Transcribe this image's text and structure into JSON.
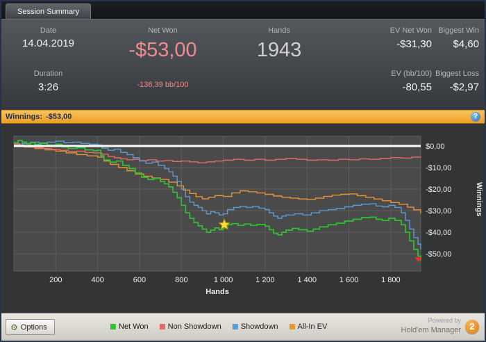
{
  "tab_bar": {
    "tab_label": "Session Summary"
  },
  "stats": {
    "date": {
      "label": "Date",
      "value": "14.04.2019"
    },
    "duration": {
      "label": "Duration",
      "value": "3:26"
    },
    "net_won": {
      "label": "Net Won",
      "value": "-$53,00",
      "subvalue": "-136,39 bb/100"
    },
    "hands": {
      "label": "Hands",
      "value": "1943"
    },
    "ev_net_won": {
      "label": "EV Net Won",
      "value": "-$31,30"
    },
    "biggest_win": {
      "label": "Biggest Win",
      "value": "$4,60"
    },
    "ev_bb100": {
      "label": "EV (bb/100)",
      "value": "-80,55"
    },
    "biggest_loss": {
      "label": "Biggest Loss",
      "value": "-$2,97"
    }
  },
  "winnings_bar": {
    "label": "Winnings:",
    "value": "-$53,00",
    "help": "?"
  },
  "colors": {
    "loss_text": "#ef8c8c",
    "winnings_bar_accent": "#f2a32c",
    "brand_badge": "#e8871a"
  },
  "chart_data": {
    "type": "line",
    "title": "Winnings: -$53,00",
    "xlabel": "Hands",
    "ylabel": "Winnings",
    "xlim": [
      0,
      1943
    ],
    "ylim": [
      -58,
      4.5
    ],
    "grid": true,
    "legend_position": "bottom",
    "plot_bg": "#4a4a4a",
    "grid_color": "#5e5e5e",
    "zero_line_color": "#ffffff",
    "xticks": {
      "values": [
        200,
        400,
        600,
        800,
        1000,
        1200,
        1400,
        1600,
        1800
      ],
      "labels": [
        "200",
        "400",
        "600",
        "800",
        "1 000",
        "1 200",
        "1 400",
        "1 600",
        "1 800"
      ]
    },
    "yticks": {
      "values": [
        0,
        -10,
        -20,
        -30,
        -40,
        -50
      ],
      "labels": [
        "$0,00",
        "-$10,00",
        "-$20,00",
        "-$30,00",
        "-$40,00",
        "-$50,00"
      ]
    },
    "series": [
      {
        "name": "All-In EV",
        "color": "#e79433",
        "width": 1.4,
        "points": [
          [
            0,
            0.5
          ],
          [
            50,
            -0.5
          ],
          [
            100,
            -1.2
          ],
          [
            150,
            -1.8
          ],
          [
            200,
            -2.4
          ],
          [
            250,
            -3.2
          ],
          [
            300,
            -4.0
          ],
          [
            350,
            -4.6
          ],
          [
            400,
            -5.2
          ],
          [
            430,
            -7.0
          ],
          [
            460,
            -8.5
          ],
          [
            500,
            -10.0
          ],
          [
            540,
            -11.5
          ],
          [
            580,
            -13.0
          ],
          [
            620,
            -14.0
          ],
          [
            660,
            -14.8
          ],
          [
            700,
            -15.5
          ],
          [
            740,
            -16.8
          ],
          [
            780,
            -18.5
          ],
          [
            810,
            -20.5
          ],
          [
            840,
            -22.0
          ],
          [
            870,
            -23.5
          ],
          [
            900,
            -24.5
          ],
          [
            930,
            -23.8
          ],
          [
            960,
            -23.0
          ],
          [
            1000,
            -23.4
          ],
          [
            1040,
            -21.8
          ],
          [
            1080,
            -20.8
          ],
          [
            1120,
            -21.2
          ],
          [
            1160,
            -21.8
          ],
          [
            1200,
            -22.4
          ],
          [
            1240,
            -23.2
          ],
          [
            1280,
            -23.8
          ],
          [
            1320,
            -24.2
          ],
          [
            1360,
            -24.6
          ],
          [
            1400,
            -24.8
          ],
          [
            1440,
            -24.2
          ],
          [
            1480,
            -23.4
          ],
          [
            1520,
            -22.8
          ],
          [
            1560,
            -22.4
          ],
          [
            1600,
            -22.2
          ],
          [
            1640,
            -23.0
          ],
          [
            1680,
            -23.8
          ],
          [
            1720,
            -24.6
          ],
          [
            1760,
            -25.4
          ],
          [
            1800,
            -26.2
          ],
          [
            1840,
            -27.0
          ],
          [
            1880,
            -28.4
          ],
          [
            1910,
            -29.6
          ],
          [
            1943,
            -31.3
          ]
        ]
      },
      {
        "name": "Non Showdown",
        "color": "#e46a6a",
        "width": 1.4,
        "points": [
          [
            0,
            1.0
          ],
          [
            30,
            0.2
          ],
          [
            60,
            -0.5
          ],
          [
            100,
            -0.8
          ],
          [
            140,
            -1.2
          ],
          [
            180,
            -1.6
          ],
          [
            220,
            -2.0
          ],
          [
            260,
            -2.6
          ],
          [
            300,
            -2.4
          ],
          [
            340,
            -3.0
          ],
          [
            380,
            -3.2
          ],
          [
            420,
            -3.8
          ],
          [
            450,
            -4.8
          ],
          [
            480,
            -5.5
          ],
          [
            510,
            -6.0
          ],
          [
            540,
            -6.4
          ],
          [
            570,
            -6.2
          ],
          [
            600,
            -6.8
          ],
          [
            640,
            -6.4
          ],
          [
            680,
            -7.0
          ],
          [
            720,
            -6.8
          ],
          [
            760,
            -7.2
          ],
          [
            800,
            -7.0
          ],
          [
            840,
            -7.4
          ],
          [
            880,
            -7.8
          ],
          [
            920,
            -7.4
          ],
          [
            960,
            -7.0
          ],
          [
            1000,
            -6.6
          ],
          [
            1050,
            -6.2
          ],
          [
            1100,
            -6.6
          ],
          [
            1150,
            -6.2
          ],
          [
            1200,
            -6.6
          ],
          [
            1250,
            -6.2
          ],
          [
            1300,
            -5.8
          ],
          [
            1350,
            -6.2
          ],
          [
            1400,
            -6.6
          ],
          [
            1450,
            -6.4
          ],
          [
            1500,
            -6.6
          ],
          [
            1550,
            -6.2
          ],
          [
            1600,
            -6.4
          ],
          [
            1650,
            -6.0
          ],
          [
            1700,
            -6.2
          ],
          [
            1750,
            -5.8
          ],
          [
            1800,
            -5.4
          ],
          [
            1850,
            -5.6
          ],
          [
            1900,
            -5.2
          ],
          [
            1943,
            -5.0
          ]
        ]
      },
      {
        "name": "Showdown",
        "color": "#5b9bd5",
        "width": 1.4,
        "points": [
          [
            0,
            0.5
          ],
          [
            40,
            1.2
          ],
          [
            80,
            1.8
          ],
          [
            120,
            1.4
          ],
          [
            160,
            1.8
          ],
          [
            200,
            2.2
          ],
          [
            240,
            1.5
          ],
          [
            280,
            1.8
          ],
          [
            320,
            1.2
          ],
          [
            360,
            0.8
          ],
          [
            400,
            0.5
          ],
          [
            420,
            -1.0
          ],
          [
            450,
            -2.0
          ],
          [
            480,
            -1.5
          ],
          [
            510,
            -3.0
          ],
          [
            540,
            -4.0
          ],
          [
            570,
            -5.5
          ],
          [
            600,
            -7.0
          ],
          [
            630,
            -8.0
          ],
          [
            660,
            -7.5
          ],
          [
            690,
            -9.0
          ],
          [
            720,
            -10.5
          ],
          [
            740,
            -12.0
          ],
          [
            760,
            -14.0
          ],
          [
            780,
            -16.5
          ],
          [
            800,
            -20.0
          ],
          [
            820,
            -23.5
          ],
          [
            840,
            -26.0
          ],
          [
            860,
            -27.5
          ],
          [
            880,
            -28.5
          ],
          [
            900,
            -30.0
          ],
          [
            920,
            -31.5
          ],
          [
            940,
            -30.5
          ],
          [
            960,
            -31.0
          ],
          [
            980,
            -32.0
          ],
          [
            1000,
            -31.5
          ],
          [
            1020,
            -29.5
          ],
          [
            1050,
            -28.5
          ],
          [
            1080,
            -28.0
          ],
          [
            1110,
            -28.5
          ],
          [
            1140,
            -28.0
          ],
          [
            1170,
            -28.8
          ],
          [
            1200,
            -29.5
          ],
          [
            1220,
            -31.0
          ],
          [
            1240,
            -32.5
          ],
          [
            1260,
            -33.5
          ],
          [
            1280,
            -32.5
          ],
          [
            1300,
            -32.0
          ],
          [
            1340,
            -31.5
          ],
          [
            1380,
            -32.0
          ],
          [
            1420,
            -31.0
          ],
          [
            1460,
            -30.0
          ],
          [
            1500,
            -29.5
          ],
          [
            1540,
            -29.0
          ],
          [
            1580,
            -28.2
          ],
          [
            1620,
            -27.5
          ],
          [
            1660,
            -27.0
          ],
          [
            1700,
            -26.8
          ],
          [
            1730,
            -27.8
          ],
          [
            1760,
            -28.2
          ],
          [
            1790,
            -27.5
          ],
          [
            1820,
            -28.5
          ],
          [
            1850,
            -31.0
          ],
          [
            1870,
            -34.5
          ],
          [
            1890,
            -38.5
          ],
          [
            1910,
            -42.5
          ],
          [
            1930,
            -45.5
          ],
          [
            1943,
            -48.0
          ]
        ]
      },
      {
        "name": "Net Won",
        "color": "#2ec32e",
        "width": 1.7,
        "points": [
          [
            0,
            1.5
          ],
          [
            20,
            2.5
          ],
          [
            40,
            1.8
          ],
          [
            60,
            1.0
          ],
          [
            80,
            1.5
          ],
          [
            100,
            0.8
          ],
          [
            130,
            1.2
          ],
          [
            160,
            0.4
          ],
          [
            200,
            0.8
          ],
          [
            230,
            -0.5
          ],
          [
            260,
            -1.2
          ],
          [
            300,
            -0.8
          ],
          [
            340,
            -1.8
          ],
          [
            380,
            -2.2
          ],
          [
            400,
            -2.0
          ],
          [
            415,
            -4.5
          ],
          [
            430,
            -6.5
          ],
          [
            460,
            -7.5
          ],
          [
            490,
            -7.0
          ],
          [
            520,
            -9.0
          ],
          [
            550,
            -10.5
          ],
          [
            580,
            -12.5
          ],
          [
            610,
            -14.5
          ],
          [
            640,
            -15.5
          ],
          [
            670,
            -15.0
          ],
          [
            700,
            -16.5
          ],
          [
            720,
            -17.5
          ],
          [
            740,
            -19.0
          ],
          [
            760,
            -21.5
          ],
          [
            780,
            -24.0
          ],
          [
            800,
            -27.5
          ],
          [
            820,
            -31.0
          ],
          [
            840,
            -33.5
          ],
          [
            860,
            -35.5
          ],
          [
            880,
            -37.0
          ],
          [
            900,
            -38.5
          ],
          [
            920,
            -40.0
          ],
          [
            940,
            -39.0
          ],
          [
            960,
            -38.0
          ],
          [
            980,
            -38.8
          ],
          [
            1000,
            -38.0
          ],
          [
            1020,
            -36.5
          ],
          [
            1040,
            -36.0
          ],
          [
            1070,
            -36.8
          ],
          [
            1100,
            -36.2
          ],
          [
            1130,
            -36.8
          ],
          [
            1160,
            -36.4
          ],
          [
            1200,
            -37.2
          ],
          [
            1220,
            -38.8
          ],
          [
            1240,
            -40.5
          ],
          [
            1260,
            -41.2
          ],
          [
            1280,
            -40.0
          ],
          [
            1300,
            -39.0
          ],
          [
            1330,
            -38.2
          ],
          [
            1360,
            -38.8
          ],
          [
            1400,
            -39.5
          ],
          [
            1430,
            -38.5
          ],
          [
            1460,
            -37.5
          ],
          [
            1500,
            -36.5
          ],
          [
            1540,
            -35.8
          ],
          [
            1580,
            -34.8
          ],
          [
            1620,
            -34.0
          ],
          [
            1660,
            -33.2
          ],
          [
            1700,
            -33.0
          ],
          [
            1730,
            -34.0
          ],
          [
            1760,
            -34.5
          ],
          [
            1790,
            -33.5
          ],
          [
            1820,
            -34.5
          ],
          [
            1850,
            -36.5
          ],
          [
            1870,
            -40.0
          ],
          [
            1890,
            -44.0
          ],
          [
            1910,
            -48.0
          ],
          [
            1930,
            -51.0
          ],
          [
            1943,
            -53.0
          ]
        ]
      }
    ],
    "markers": [
      {
        "type": "star",
        "x": 1005,
        "y": -36.5,
        "color": "#ffdf3a"
      },
      {
        "type": "triangle-down",
        "x": 1932,
        "y": -52.5,
        "color": "#e03030"
      }
    ]
  },
  "footer": {
    "options": {
      "label": "Options"
    },
    "legend": [
      {
        "label": "Net Won",
        "color": "#2ec32e"
      },
      {
        "label": "Non Showdown",
        "color": "#e46a6a"
      },
      {
        "label": "Showdown",
        "color": "#5b9bd5"
      },
      {
        "label": "All-In EV",
        "color": "#e79433"
      }
    ],
    "powered_by": {
      "line1": "Powered by",
      "line2": "Hold'em Manager",
      "badge": "2"
    }
  }
}
